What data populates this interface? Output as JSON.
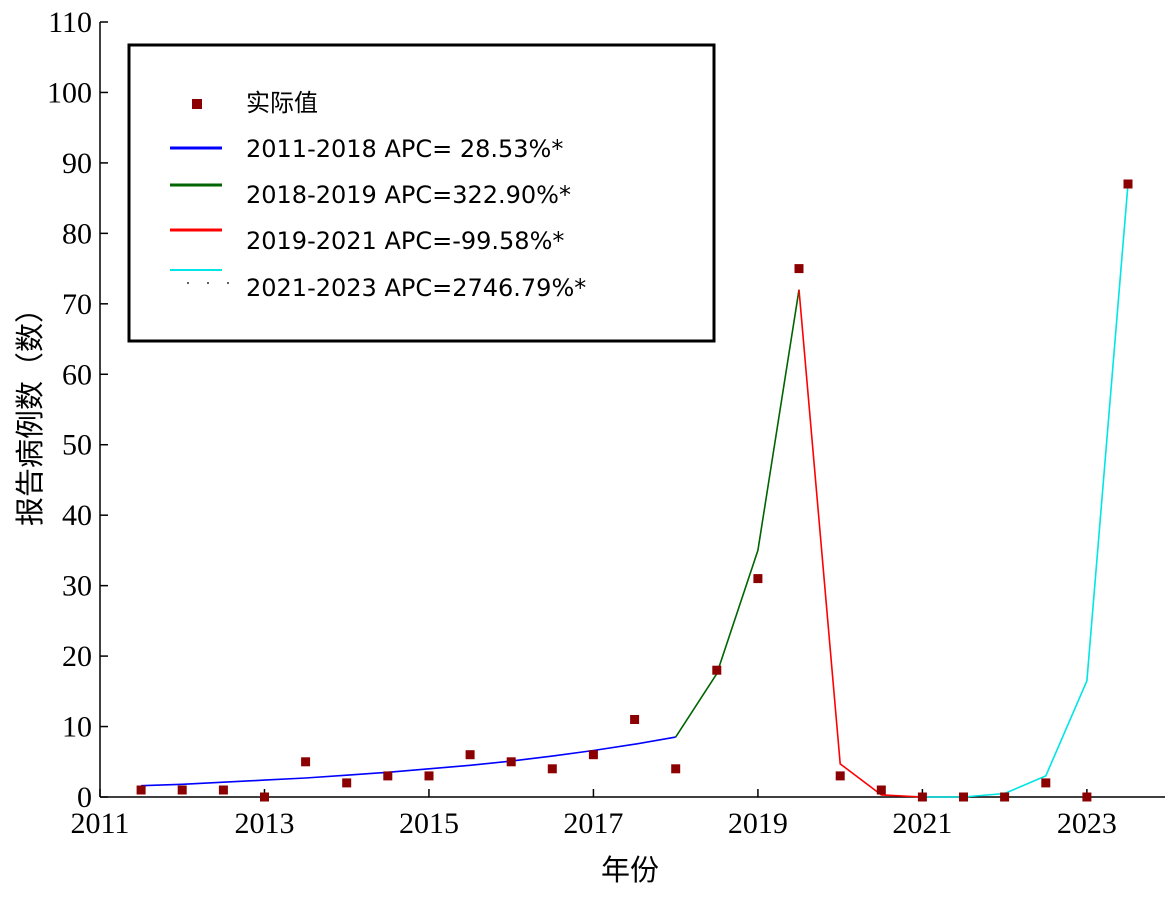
{
  "chart_data": {
    "type": "line",
    "xlabel": "年份",
    "ylabel": "报告病例数（数）",
    "xlim": [
      2011,
      2023.95
    ],
    "ylim": [
      0,
      110
    ],
    "x_ticks": [
      2011,
      2013,
      2015,
      2017,
      2019,
      2021,
      2023
    ],
    "y_ticks": [
      0,
      10,
      20,
      30,
      40,
      50,
      60,
      70,
      80,
      90,
      100,
      110
    ],
    "grid": false,
    "legend_position": "top-left",
    "actual": {
      "name": "实际值",
      "color": "#8b0000",
      "marker": "square",
      "x": [
        2011.5,
        2012.0,
        2012.5,
        2013.0,
        2013.5,
        2014.0,
        2014.5,
        2015.0,
        2015.5,
        2016.0,
        2016.5,
        2017.0,
        2017.5,
        2018.0,
        2018.5,
        2019.0,
        2019.5,
        2020.0,
        2020.5,
        2021.0,
        2021.5,
        2022.0,
        2022.5,
        2023.0,
        2023.5
      ],
      "y": [
        1,
        1,
        1,
        0,
        5,
        2,
        3,
        3,
        6,
        5,
        4,
        6,
        11,
        4,
        18,
        31,
        75,
        3,
        1,
        0,
        0,
        0,
        2,
        0,
        87
      ]
    },
    "series": [
      {
        "name": "2011-2018 APC= 28.53%*",
        "color": "#0000ff",
        "x": [
          2011.5,
          2012.0,
          2012.5,
          2013.0,
          2013.5,
          2014.0,
          2014.5,
          2015.0,
          2015.5,
          2016.0,
          2016.5,
          2017.0,
          2017.5,
          2018.0
        ],
        "y": [
          1.6,
          1.8,
          2.1,
          2.4,
          2.7,
          3.1,
          3.5,
          4.0,
          4.5,
          5.1,
          5.8,
          6.6,
          7.5,
          8.5
        ]
      },
      {
        "name": "2018-2019 APC=322.90%*",
        "color": "#006400",
        "x": [
          2018.0,
          2018.5,
          2019.0,
          2019.5
        ],
        "y": [
          8.5,
          17.5,
          35,
          72
        ]
      },
      {
        "name": "2019-2021 APC=-99.58%*",
        "color": "#ff0000",
        "x": [
          2019.5,
          2020.0,
          2020.5,
          2021.0
        ],
        "y": [
          72,
          4.7,
          0.3,
          0
        ]
      },
      {
        "name": "2021-2023 APC=2746.79%*",
        "color": "#00e5e5",
        "x": [
          2021.0,
          2021.5,
          2022.0,
          2022.5,
          2023.0,
          2023.5
        ],
        "y": [
          0,
          0,
          0.5,
          3,
          16.5,
          87
        ]
      }
    ]
  }
}
